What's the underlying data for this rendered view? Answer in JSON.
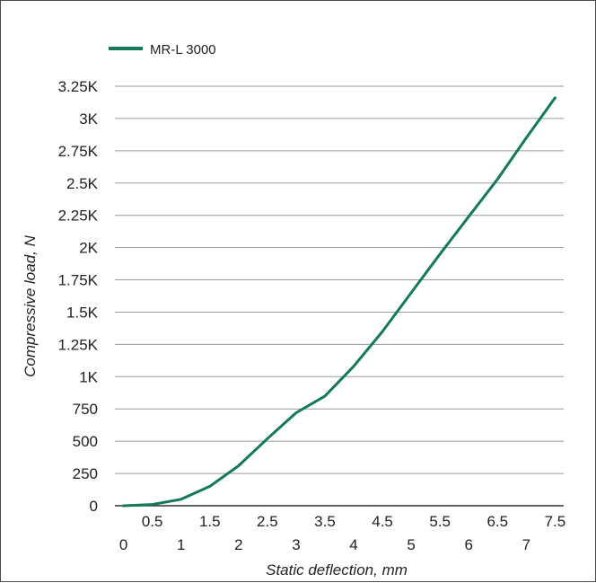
{
  "chart_data": {
    "type": "line",
    "title": "",
    "xlabel": "Static deflection, mm",
    "ylabel": "Compressive load, N",
    "xlim": [
      -0.15,
      7.65
    ],
    "ylim": [
      0,
      3250
    ],
    "x_ticks_lower": [
      "0",
      "1",
      "2",
      "3",
      "4",
      "5",
      "6",
      "7"
    ],
    "x_ticks_upper": [
      "0.5",
      "1.5",
      "2.5",
      "3.5",
      "4.5",
      "5.5",
      "6.5",
      "7.5"
    ],
    "y_ticks": [
      {
        "value": 0,
        "label": "0"
      },
      {
        "value": 250,
        "label": "250"
      },
      {
        "value": 500,
        "label": "500"
      },
      {
        "value": 750,
        "label": "750"
      },
      {
        "value": 1000,
        "label": "1K"
      },
      {
        "value": 1250,
        "label": "1.25K"
      },
      {
        "value": 1500,
        "label": "1.5K"
      },
      {
        "value": 1750,
        "label": "1.75K"
      },
      {
        "value": 2000,
        "label": "2K"
      },
      {
        "value": 2250,
        "label": "2.25K"
      },
      {
        "value": 2500,
        "label": "2.5K"
      },
      {
        "value": 2750,
        "label": "2.75K"
      },
      {
        "value": 3000,
        "label": "3K"
      },
      {
        "value": 3250,
        "label": "3.25K"
      }
    ],
    "grid": "horizontal",
    "legend_position": "top-left",
    "series": [
      {
        "name": "MR-L 3000",
        "color": "#137a55",
        "x": [
          0,
          0.5,
          1,
          1.5,
          2,
          2.5,
          3,
          3.5,
          4,
          4.5,
          5,
          5.5,
          6,
          6.5,
          7,
          7.5
        ],
        "y": [
          0,
          10,
          50,
          150,
          310,
          520,
          720,
          850,
          1080,
          1350,
          1650,
          1950,
          2240,
          2530,
          2850,
          3160
        ]
      }
    ]
  }
}
